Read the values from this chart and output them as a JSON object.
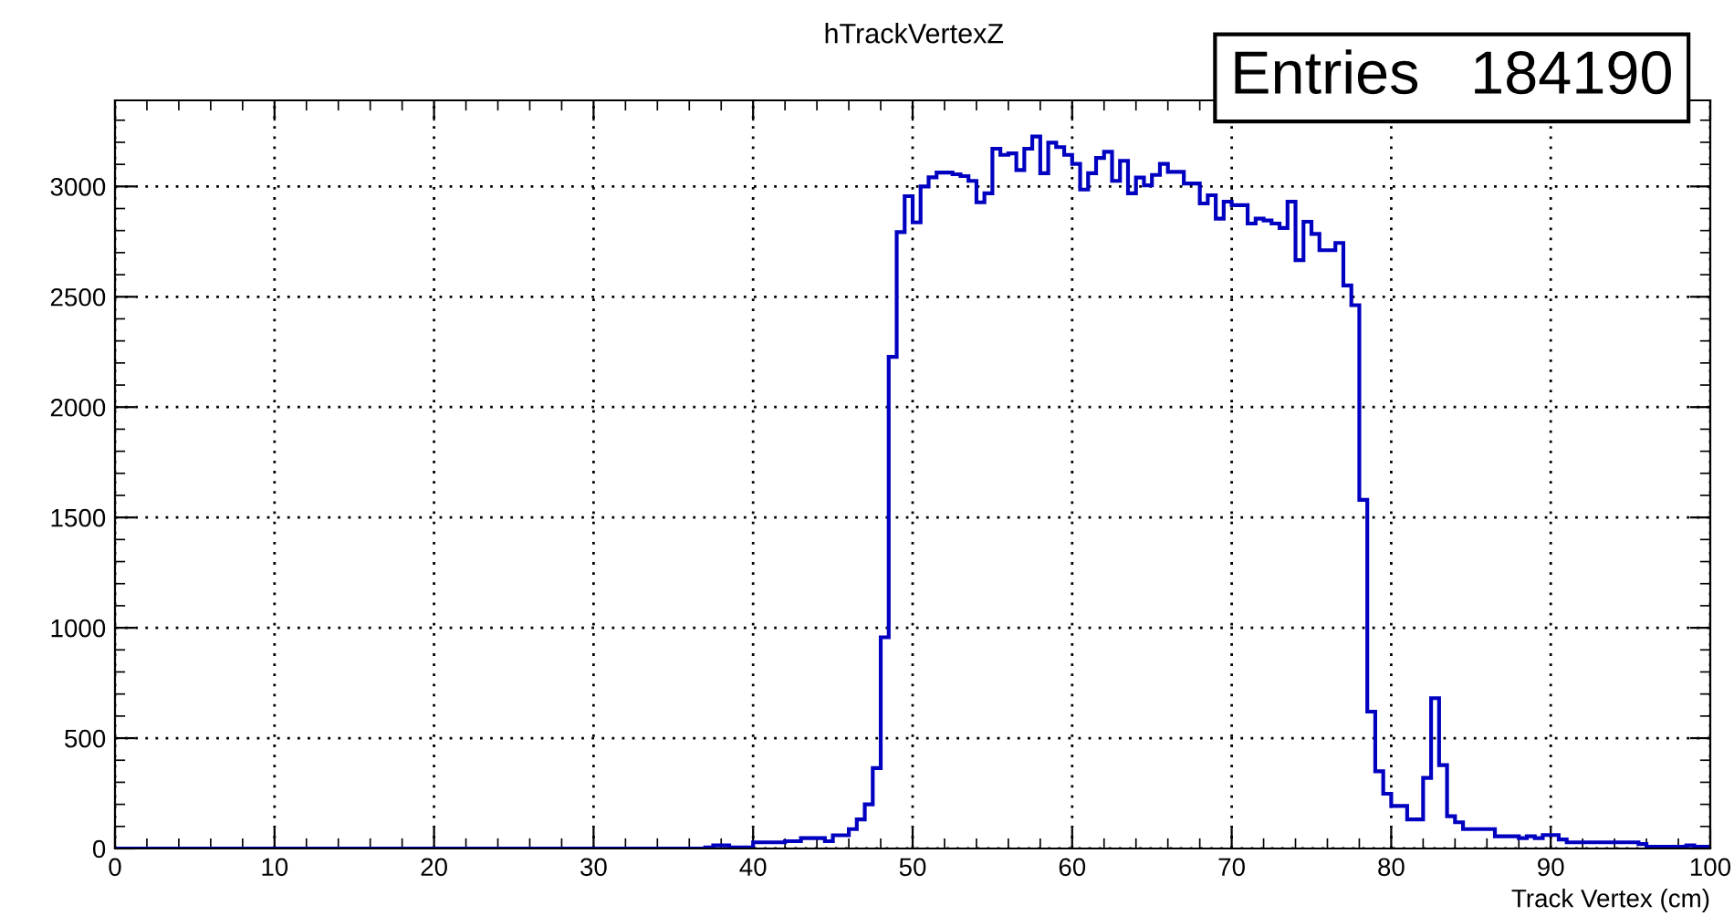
{
  "chart_data": {
    "type": "histogram",
    "title": "hTrackVertexZ",
    "xlabel": "Track Vertex (cm)",
    "annotations": [
      "Entries   184190"
    ],
    "color": "#0000c0",
    "bins": [
      0,
      0.5,
      1,
      1.5,
      2,
      2.5,
      3,
      3.5,
      4,
      4.5,
      5,
      5.5,
      6,
      6.5,
      7,
      7.5,
      8,
      8.5,
      9,
      9.5,
      10,
      10.5,
      11,
      11.5,
      12,
      12.5,
      13,
      13.5,
      14,
      14.5,
      15,
      15.5,
      16,
      16.5,
      17,
      17.5,
      18,
      18.5,
      19,
      19.5,
      20,
      20.5,
      21,
      21.5,
      22,
      22.5,
      23,
      23.5,
      24,
      24.5,
      25,
      25.5,
      26,
      26.5,
      27,
      27.5,
      28,
      28.5,
      29,
      29.5,
      30,
      30.5,
      31,
      31.5,
      32,
      32.5,
      33,
      33.5,
      34,
      34.5,
      35,
      35.5,
      36,
      36.5,
      37,
      37.5,
      38,
      38.5,
      39,
      39.5,
      40,
      40.5,
      41,
      41.5,
      42,
      42.5,
      43,
      43.5,
      44,
      44.5,
      45,
      45.5,
      46,
      46.5,
      47,
      47.5,
      48,
      48.5,
      49,
      49.5,
      50,
      50.5,
      51,
      51.5,
      52,
      52.5,
      53,
      53.5,
      54,
      54.5,
      55,
      55.5,
      56,
      56.5,
      57,
      57.5,
      58,
      58.5,
      59,
      59.5,
      60,
      60.5,
      61,
      61.5,
      62,
      62.5,
      63,
      63.5,
      64,
      64.5,
      65,
      65.5,
      66,
      66.5,
      67,
      67.5,
      68,
      68.5,
      69,
      69.5,
      70,
      70.5,
      71,
      71.5,
      72,
      72.5,
      73,
      73.5,
      74,
      74.5,
      75,
      75.5,
      76,
      76.5,
      77,
      77.5,
      78,
      78.5,
      79,
      79.5,
      80,
      80.5,
      81,
      81.5,
      82,
      82.5,
      83,
      83.5,
      84,
      84.5,
      85,
      85.5,
      86,
      86.5,
      87,
      87.5,
      88,
      88.5,
      89,
      89.5,
      90,
      90.5,
      91,
      91.5,
      92,
      92.5,
      93,
      93.5,
      94,
      94.5,
      95,
      95.5,
      96,
      96.5,
      97,
      97.5,
      98,
      98.5,
      99,
      99.5,
      100
    ],
    "values": [
      0,
      0,
      0,
      0,
      0,
      0,
      0,
      0,
      0,
      0,
      0,
      0,
      0,
      0,
      0,
      0,
      0,
      0,
      0,
      0,
      0,
      0,
      0,
      0,
      0,
      0,
      0,
      0,
      0,
      0,
      0,
      0,
      0,
      0,
      0,
      0,
      0,
      0,
      0,
      0,
      0,
      0,
      0,
      0,
      0,
      0,
      0,
      0,
      0,
      0,
      0,
      0,
      0,
      0,
      0,
      0,
      0,
      0,
      0,
      0,
      0,
      0,
      0,
      0,
      0,
      0,
      0,
      0,
      0,
      0,
      0,
      0,
      0,
      0,
      5,
      14,
      14,
      5,
      5,
      5,
      28,
      28,
      28,
      28,
      33,
      33,
      47,
      47,
      47,
      33,
      60,
      60,
      88,
      132,
      200,
      364,
      957,
      2228,
      2793,
      2956,
      2837,
      3000,
      3041,
      3063,
      3063,
      3055,
      3047,
      3025,
      2928,
      2969,
      3171,
      3143,
      3150,
      3074,
      3171,
      3226,
      3060,
      3198,
      3178,
      3143,
      3102,
      2986,
      3060,
      3129,
      3157,
      3025,
      3116,
      2969,
      3040,
      3005,
      3052,
      3102,
      3066,
      3066,
      3013,
      3013,
      2923,
      2960,
      2854,
      2931,
      2915,
      2915,
      2832,
      2854,
      2846,
      2832,
      2812,
      2931,
      2666,
      2840,
      2785,
      2711,
      2711,
      2744,
      2551,
      2462,
      1580,
      620,
      350,
      248,
      193,
      193,
      132,
      132,
      320,
      681,
      378,
      146,
      119,
      88,
      88,
      88,
      88,
      55,
      55,
      55,
      47,
      55,
      47,
      61,
      61,
      41,
      28,
      28,
      28,
      28,
      28,
      28,
      28,
      28,
      28,
      20,
      8,
      8,
      8,
      8,
      8,
      14,
      8,
      8
    ],
    "xlim": [
      0,
      100
    ],
    "xticks": [
      0,
      10,
      20,
      30,
      40,
      50,
      60,
      70,
      80,
      90,
      100
    ],
    "ylim": [
      0,
      3390
    ],
    "yticks": [
      0,
      500,
      1000,
      1500,
      2000,
      2500,
      3000
    ],
    "grid": true
  }
}
